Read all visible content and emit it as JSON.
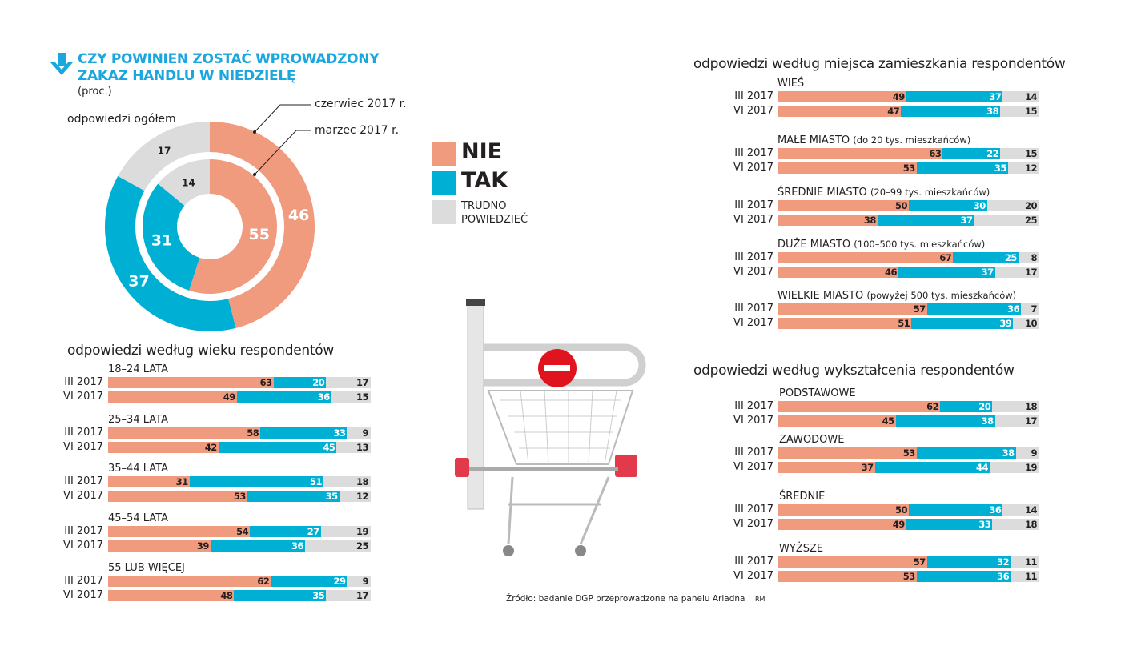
{
  "header": {
    "title_line1": "CZY POWINIEN ZOSTAĆ WPROWADZONY",
    "title_line2": "ZAKAZ HANDLU W NIEDZIELĘ",
    "unit": "(proc.)",
    "icon": "arrow-down-icon"
  },
  "colors": {
    "nie": "#f09a7e",
    "tak": "#00b0d4",
    "trudno": "#dcdcdc",
    "title": "#1aa6df"
  },
  "legend": {
    "nie": "NIE",
    "tak": "TAK",
    "trudno_line1": "TRUDNO",
    "trudno_line2": "POWIEDZIEĆ"
  },
  "source": {
    "text": "Źródło: badanie DGP przeprowadzone na panelu Ariadna",
    "author": "RM"
  },
  "chart_data": [
    {
      "type": "pie",
      "title": "odpowiedzi ogółem",
      "categories": [
        "NIE",
        "TAK",
        "TRUDNO POWIEDZIEĆ"
      ],
      "series": [
        {
          "name": "czerwiec 2017 r.",
          "ring": "outer",
          "values": [
            46,
            37,
            17
          ]
        },
        {
          "name": "marzec 2017 r.",
          "ring": "inner",
          "values": [
            55,
            31,
            14
          ]
        }
      ]
    },
    {
      "type": "bar",
      "stacked": true,
      "title": "odpowiedzi według wieku respondentów",
      "categories": [
        "NIE",
        "TAK",
        "TRUDNO POWIEDZIEĆ"
      ],
      "groups": [
        {
          "label": "18–24 LATA",
          "sub": "",
          "rows": [
            {
              "label": "III 2017",
              "values": [
                63,
                20,
                17
              ]
            },
            {
              "label": "VI 2017",
              "values": [
                49,
                36,
                15
              ]
            }
          ]
        },
        {
          "label": "25–34 LATA",
          "sub": "",
          "rows": [
            {
              "label": "III 2017",
              "values": [
                58,
                33,
                9
              ]
            },
            {
              "label": "VI 2017",
              "values": [
                42,
                45,
                13
              ]
            }
          ]
        },
        {
          "label": "35–44 LATA",
          "sub": "",
          "rows": [
            {
              "label": "III 2017",
              "values": [
                31,
                51,
                18
              ]
            },
            {
              "label": "VI 2017",
              "values": [
                53,
                35,
                12
              ]
            }
          ]
        },
        {
          "label": "45–54 LATA",
          "sub": "",
          "rows": [
            {
              "label": "III 2017",
              "values": [
                54,
                27,
                19
              ]
            },
            {
              "label": "VI 2017",
              "values": [
                39,
                36,
                25
              ]
            }
          ]
        },
        {
          "label": "55 LUB WIĘCEJ",
          "sub": "",
          "rows": [
            {
              "label": "III 2017",
              "values": [
                62,
                29,
                9
              ]
            },
            {
              "label": "VI 2017",
              "values": [
                48,
                35,
                17
              ]
            }
          ]
        }
      ]
    },
    {
      "type": "bar",
      "stacked": true,
      "title": "odpowiedzi według miejsca zamieszkania respondentów",
      "categories": [
        "NIE",
        "TAK",
        "TRUDNO POWIEDZIEĆ"
      ],
      "groups": [
        {
          "label": "WIEŚ",
          "sub": "",
          "rows": [
            {
              "label": "III 2017",
              "values": [
                49,
                37,
                14
              ]
            },
            {
              "label": "VI 2017",
              "values": [
                47,
                38,
                15
              ]
            }
          ]
        },
        {
          "label": "MAŁE MIASTO",
          "sub": "(do 20 tys. mieszkańców)",
          "rows": [
            {
              "label": "III 2017",
              "values": [
                63,
                22,
                15
              ]
            },
            {
              "label": "VI 2017",
              "values": [
                53,
                35,
                12
              ]
            }
          ]
        },
        {
          "label": "ŚREDNIE MIASTO",
          "sub": "(20–99 tys. mieszkańców)",
          "rows": [
            {
              "label": "III 2017",
              "values": [
                50,
                30,
                20
              ]
            },
            {
              "label": "VI 2017",
              "values": [
                38,
                37,
                25
              ]
            }
          ]
        },
        {
          "label": "DUŻE MIASTO",
          "sub": "(100–500 tys. mieszkańców)",
          "rows": [
            {
              "label": "III 2017",
              "values": [
                67,
                25,
                8
              ]
            },
            {
              "label": "VI 2017",
              "values": [
                46,
                37,
                17
              ]
            }
          ]
        },
        {
          "label": "WIELKIE MIASTO",
          "sub": "(powyżej 500 tys. mieszkańców)",
          "rows": [
            {
              "label": "III 2017",
              "values": [
                57,
                36,
                7
              ]
            },
            {
              "label": "VI 2017",
              "values": [
                51,
                39,
                10
              ]
            }
          ]
        }
      ]
    },
    {
      "type": "bar",
      "stacked": true,
      "title": "odpowiedzi według wykształcenia respondentów",
      "categories": [
        "NIE",
        "TAK",
        "TRUDNO POWIEDZIEĆ"
      ],
      "groups": [
        {
          "label": "PODSTAWOWE",
          "sub": "",
          "rows": [
            {
              "label": "III 2017",
              "values": [
                62,
                20,
                18
              ]
            },
            {
              "label": "VI 2017",
              "values": [
                45,
                38,
                17
              ]
            }
          ]
        },
        {
          "label": "ZAWODOWE",
          "sub": "",
          "rows": [
            {
              "label": "III 2017",
              "values": [
                53,
                38,
                9
              ]
            },
            {
              "label": "VI 2017",
              "values": [
                37,
                44,
                19
              ]
            }
          ]
        },
        {
          "label": "ŚREDNIE",
          "sub": "",
          "rows": [
            {
              "label": "III 2017",
              "values": [
                50,
                36,
                14
              ]
            },
            {
              "label": "VI 2017",
              "values": [
                49,
                33,
                18
              ]
            }
          ]
        },
        {
          "label": "WYŻSZE",
          "sub": "",
          "rows": [
            {
              "label": "III 2017",
              "values": [
                57,
                32,
                11
              ]
            },
            {
              "label": "VI 2017",
              "values": [
                53,
                36,
                11
              ]
            }
          ]
        }
      ]
    }
  ]
}
